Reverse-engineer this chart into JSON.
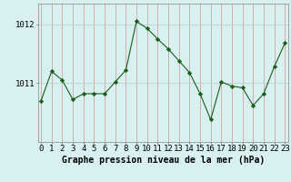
{
  "x": [
    0,
    1,
    2,
    3,
    4,
    5,
    6,
    7,
    8,
    9,
    10,
    11,
    12,
    13,
    14,
    15,
    16,
    17,
    18,
    19,
    20,
    21,
    22,
    23
  ],
  "y": [
    1010.7,
    1011.2,
    1011.05,
    1010.72,
    1010.82,
    1010.82,
    1010.82,
    1011.02,
    1011.22,
    1012.05,
    1011.93,
    1011.75,
    1011.58,
    1011.38,
    1011.18,
    1010.82,
    1010.38,
    1011.02,
    1010.95,
    1010.92,
    1010.62,
    1010.82,
    1011.28,
    1011.68
  ],
  "line_color": "#1a5c1a",
  "marker": "D",
  "marker_size": 2.2,
  "bg_color": "#d8f0f0",
  "grid_color": "#b8d4d4",
  "xlabel": "Graphe pression niveau de la mer (hPa)",
  "yticks": [
    1011,
    1012
  ],
  "ylim": [
    1010.0,
    1012.35
  ],
  "xlim": [
    -0.3,
    23.3
  ],
  "xlabel_fontsize": 7.0,
  "tick_fontsize": 6.5
}
